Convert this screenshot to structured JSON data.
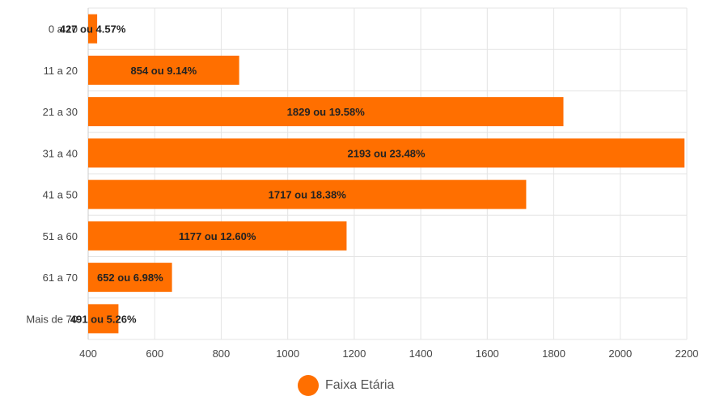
{
  "chart_data": {
    "type": "bar",
    "orientation": "horizontal",
    "categories": [
      "0 a 10",
      "11 a 20",
      "21 a 30",
      "31 a 40",
      "41 a 50",
      "51 a 60",
      "61 a 70",
      "Mais de 70"
    ],
    "values": [
      427,
      854,
      1829,
      2193,
      1717,
      1177,
      652,
      491
    ],
    "data_labels": [
      "427 ou 4.57%",
      "854 ou 9.14%",
      "1829 ou 19.58%",
      "2193 ou 23.48%",
      "1717 ou 18.38%",
      "1177 ou 12.60%",
      "652 ou 6.98%",
      "491 ou 5.26%"
    ],
    "xlim": [
      400,
      2200
    ],
    "xticks": [
      400,
      600,
      800,
      1000,
      1200,
      1400,
      1600,
      1800,
      2000,
      2200
    ],
    "grid": true,
    "legend_position": "bottom",
    "series": [
      {
        "name": "Faixa Etária",
        "values": [
          427,
          854,
          1829,
          2193,
          1717,
          1177,
          652,
          491
        ]
      }
    ],
    "color": "#ff6f00"
  }
}
